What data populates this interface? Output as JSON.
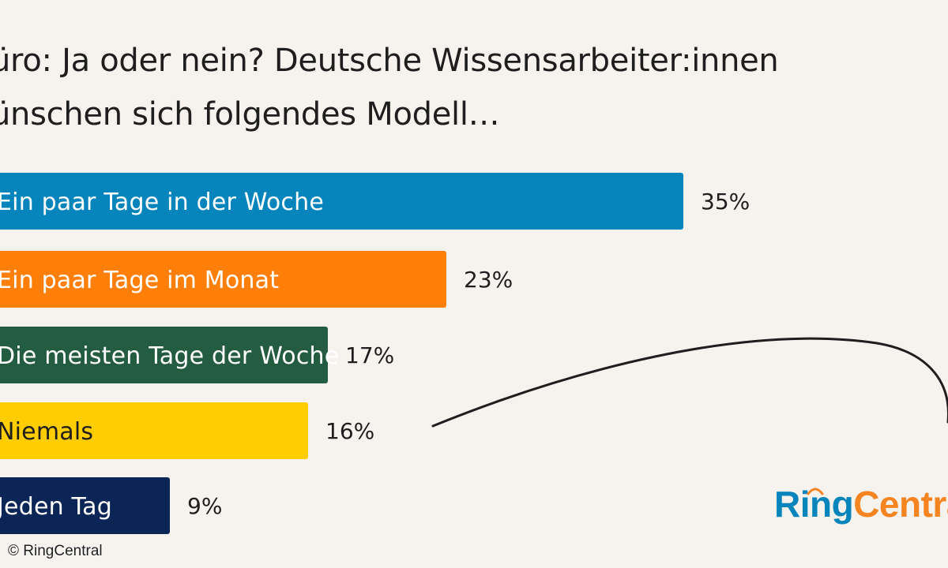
{
  "title": {
    "line1": "üro: Ja oder nein? Deutsche Wissensarbeiter:innen",
    "line2": "ünschen sich folgendes Modell…"
  },
  "chart_data": {
    "type": "bar",
    "orientation": "horizontal",
    "title": "üro: Ja oder nein? Deutsche Wissensarbeiter:innen ünschen sich folgendes Modell…",
    "categories": [
      "Ein paar Tage in der Woche",
      "Ein paar Tage im Monat",
      "Die meisten Tage der Woche",
      "Niemals",
      "Jeden Tag"
    ],
    "values": [
      35,
      23,
      17,
      16,
      9
    ],
    "value_labels": [
      "35%",
      "23%",
      "17%",
      "16%",
      "9%"
    ],
    "colors": [
      "#0684bc",
      "#ff7f08",
      "#235c41",
      "#ffcd00",
      "#0b2556"
    ],
    "label_colors": [
      "#ffffff",
      "#ffffff",
      "#ffffff",
      "#1e1e1e",
      "#ffffff"
    ],
    "xlim": [
      0,
      46
    ],
    "grid": false,
    "legend": "none"
  },
  "logo": {
    "part1": "Ring",
    "part2": "Central"
  },
  "copyright": "© RingCentral"
}
